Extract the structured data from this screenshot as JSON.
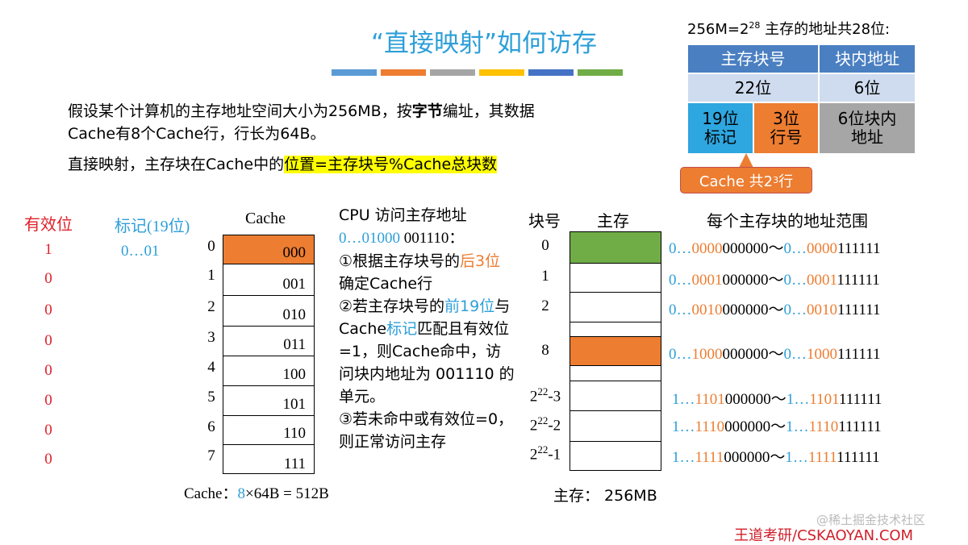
{
  "title": "“直接映射”如何访存",
  "title_bar_colors": [
    "#5b9bd5",
    "#ed7d31",
    "#a5a5a5",
    "#ffc000",
    "#4472c4",
    "#70ad47"
  ],
  "intro": {
    "line1_pre": "假设某个计算机的主存地址空间大小为256MB，按",
    "line1_bold": "字节",
    "line1_post": "编址，其数据Cache有8个Cache行，行长为64B。",
    "line2_pre": "直接映射，主存块在Cache中的",
    "line2_highlight": "位置=主存块号%Cache总块数"
  },
  "address": {
    "title_pre": "256M=2",
    "title_exp": "28",
    "title_post": " 主存的地址共28位:",
    "header_block": "主存块号",
    "header_offset": "块内地址",
    "bits_block": "22位",
    "bits_offset": "6位",
    "tag_label": "19位\n标记",
    "line_label": "3位\n行号",
    "offset_label": "6位块内\n地址",
    "colors": {
      "header": "#4a7fc1",
      "bits": "#cfdcef",
      "tag": "#2ea6df",
      "line": "#ed7d31",
      "offset": "#a6a6a6"
    }
  },
  "callout": {
    "pre": "Cache 共2",
    "exp": "3",
    "post": " 行"
  },
  "cache": {
    "valid_header": "有效位",
    "tag_header": "标记(19位)",
    "cache_header": "Cache",
    "valid_bits": [
      "1",
      "0",
      "0",
      "0",
      "0",
      "0",
      "0",
      "0"
    ],
    "tag_value": "0…01",
    "line_numbers": [
      "0",
      "1",
      "2",
      "3",
      "4",
      "5",
      "6",
      "7"
    ],
    "line_codes": [
      "000",
      "001",
      "010",
      "011",
      "100",
      "101",
      "110",
      "111"
    ],
    "footer_pre": "Cache：",
    "footer_num": "8",
    "footer_post": "×64B = 512B"
  },
  "cpu": {
    "title": "CPU 访问主存地址",
    "addr_pre": "0…01000",
    "addr_post": " 001110：",
    "s1_pre": "①根据主存块号的",
    "s1_hl": "后3位",
    "s1_post": "确定Cache行",
    "s2_pre": "②若主存块号的",
    "s2_hl": "前19位",
    "s2_mid": "与Cache",
    "s2_hl2": "标记",
    "s2_post": "匹配且有效位=1，则Cache命中，访问块内地址为 001110 的单元。",
    "s3": "③若未命中或有效位=0，则正常访问主存"
  },
  "memory": {
    "block_header": "块号",
    "mem_header": "主存",
    "range_header": "每个主存块的地址范围",
    "block_labels": [
      {
        "base": "0",
        "exp": ""
      },
      {
        "base": "1",
        "exp": ""
      },
      {
        "base": "2",
        "exp": ""
      },
      {
        "base": "8",
        "exp": ""
      },
      {
        "base": "2",
        "exp": "22",
        "tail": "-3"
      },
      {
        "base": "2",
        "exp": "22",
        "tail": "-2"
      },
      {
        "base": "2",
        "exp": "22",
        "tail": "-1"
      }
    ],
    "ranges": [
      {
        "s_pre": "0…",
        "s_tag": "0000",
        "s_rest": "000000",
        "e_pre": "0…",
        "e_tag": "0000",
        "e_rest": "111111"
      },
      {
        "s_pre": "0…",
        "s_tag": "0001",
        "s_rest": "000000",
        "e_pre": "0…",
        "e_tag": "0001",
        "e_rest": "111111"
      },
      {
        "s_pre": "0…",
        "s_tag": "0010",
        "s_rest": "000000",
        "e_pre": "0…",
        "e_tag": "0010",
        "e_rest": "111111"
      },
      {
        "s_pre": "0…",
        "s_tag": "1000",
        "s_rest": "000000",
        "e_pre": "0…",
        "e_tag": "1000",
        "e_rest": "111111"
      },
      {
        "s_pre": "1…",
        "s_tag": "1101",
        "s_rest": "000000",
        "e_pre": "1…",
        "e_tag": "1101",
        "e_rest": "111111"
      },
      {
        "s_pre": "1…",
        "s_tag": "1110",
        "s_rest": "000000",
        "e_pre": "1…",
        "e_tag": "1110",
        "e_rest": "111111"
      },
      {
        "s_pre": "1…",
        "s_tag": "1111",
        "s_rest": "000000",
        "e_pre": "1…",
        "e_tag": "1111",
        "e_rest": "111111"
      }
    ],
    "tilde": "～",
    "green": "#70ad47",
    "orange": "#ed7d31",
    "footer": "主存：  256MB"
  },
  "watermark": "@稀土掘金技术社区",
  "brand": "王道考研/CSKAOYAN.COM"
}
